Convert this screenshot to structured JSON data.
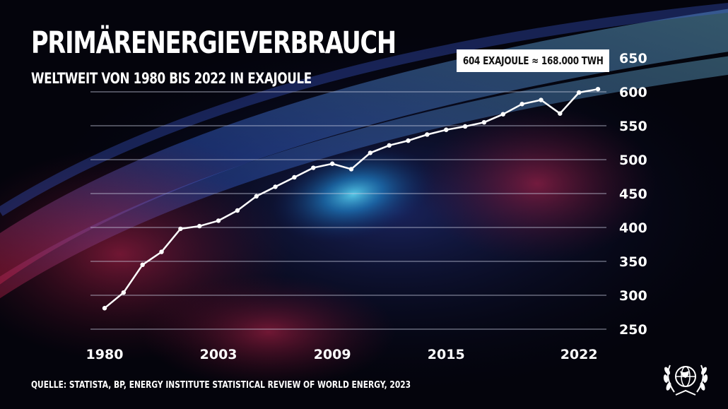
{
  "title": "PRIMÄRENERGIEVERBRAUCH",
  "subtitle": "WELTWEIT VON 1980 BIS 2022 IN EXAJOULE",
  "callout": "604 EXAJOULE  ≈ 168.000 TWH",
  "source": "QUELLE: STATISTA, BP, ENERGY INSTITUTE STATISTICAL REVIEW OF WORLD ENERGY, 2023",
  "logo_icon": "globe-laurel-icon",
  "colors": {
    "line": "#ffffff",
    "grid": "#c8cce0",
    "text": "#ffffff",
    "callout_bg": "#ffffff"
  },
  "chart_data": {
    "type": "line",
    "x_ticks": [
      "1980",
      "2003",
      "2009",
      "2015",
      "2022"
    ],
    "y_ticks": [
      "250",
      "300",
      "350",
      "400",
      "450",
      "500",
      "550",
      "600",
      "650"
    ],
    "ylim": [
      250,
      650
    ],
    "grid": true,
    "series": [
      {
        "values": [
          281,
          304,
          345,
          364,
          398,
          402,
          410,
          425,
          446,
          460,
          474,
          488,
          494,
          486,
          510,
          521,
          528,
          537,
          544,
          549,
          555,
          567,
          582,
          588,
          568,
          599,
          604
        ]
      }
    ]
  }
}
